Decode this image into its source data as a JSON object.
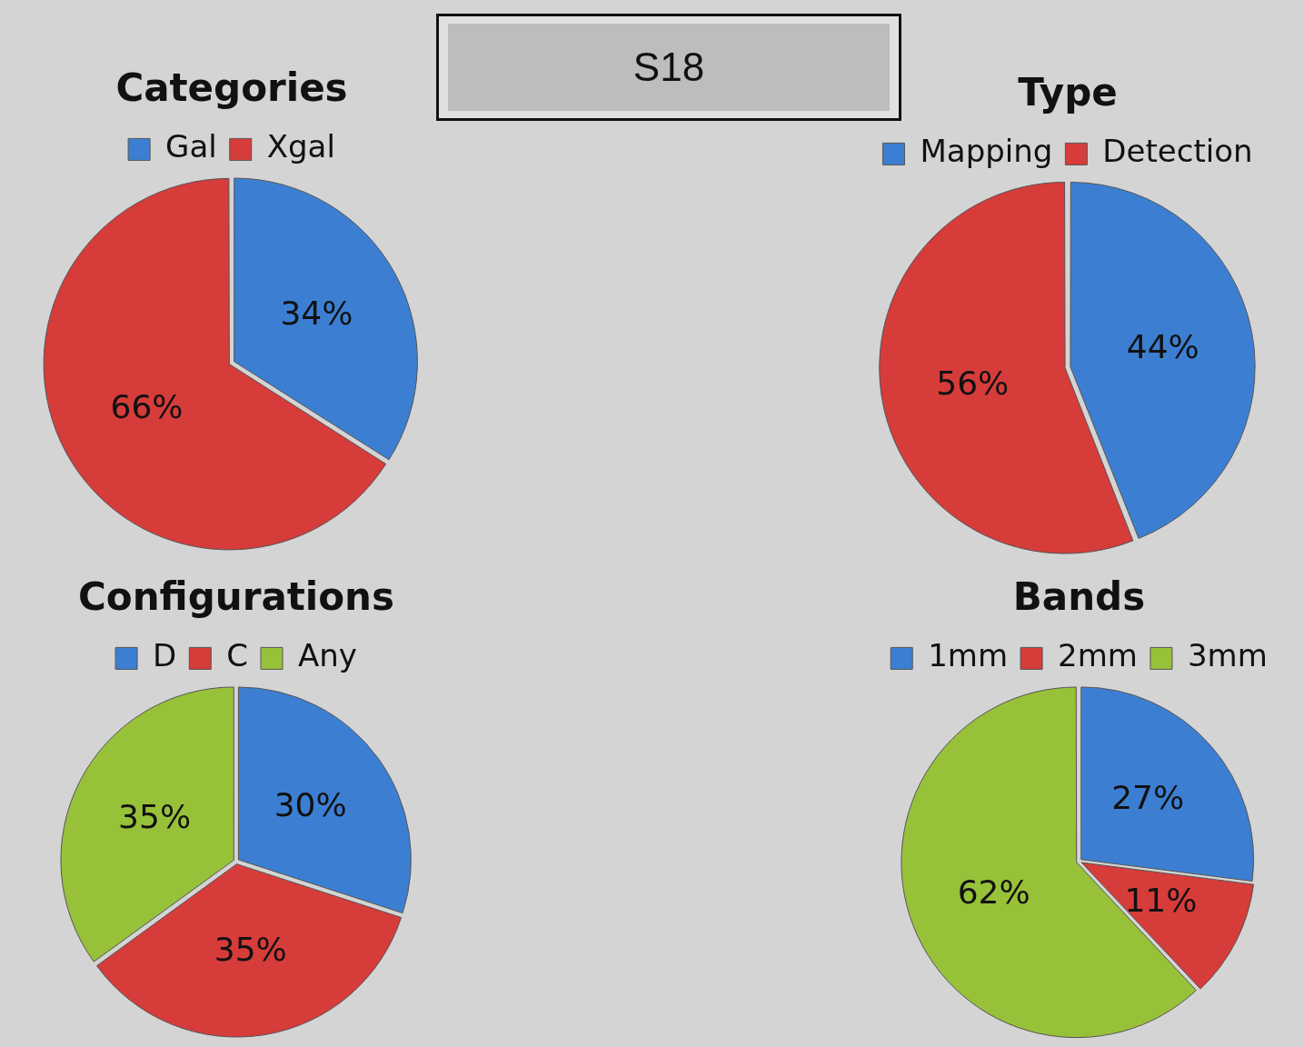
{
  "chart_data": [
    {
      "type": "pie",
      "title": "Categories",
      "categories": [
        "Gal",
        "Xgal"
      ],
      "values": [
        34,
        66
      ],
      "colors": [
        "#3c7fd2",
        "#d63c3a"
      ],
      "value_labels": [
        "34%",
        "66%"
      ],
      "legend": "top"
    },
    {
      "type": "other",
      "title": "S18"
    },
    {
      "type": "pie",
      "title": "Type",
      "categories": [
        "Mapping",
        "Detection"
      ],
      "values": [
        44,
        56
      ],
      "colors": [
        "#3c7fd2",
        "#d63c3a"
      ],
      "value_labels": [
        "44%",
        "56%"
      ],
      "legend": "top"
    },
    {
      "type": "pie",
      "title": "Configurations",
      "categories": [
        "D",
        "C",
        "Any"
      ],
      "values": [
        30,
        35,
        35
      ],
      "colors": [
        "#3c7fd2",
        "#d63c3a",
        "#98c13a"
      ],
      "value_labels": [
        "30%",
        "35%",
        "35%"
      ],
      "legend": "top"
    },
    {
      "type": "pie",
      "title": "Bands",
      "categories": [
        "1mm",
        "2mm",
        "3mm"
      ],
      "values": [
        27,
        11,
        62
      ],
      "colors": [
        "#3c7fd2",
        "#d63c3a",
        "#98c13a"
      ],
      "value_labels": [
        "27%",
        "11%",
        "62%"
      ],
      "legend": "top"
    }
  ]
}
